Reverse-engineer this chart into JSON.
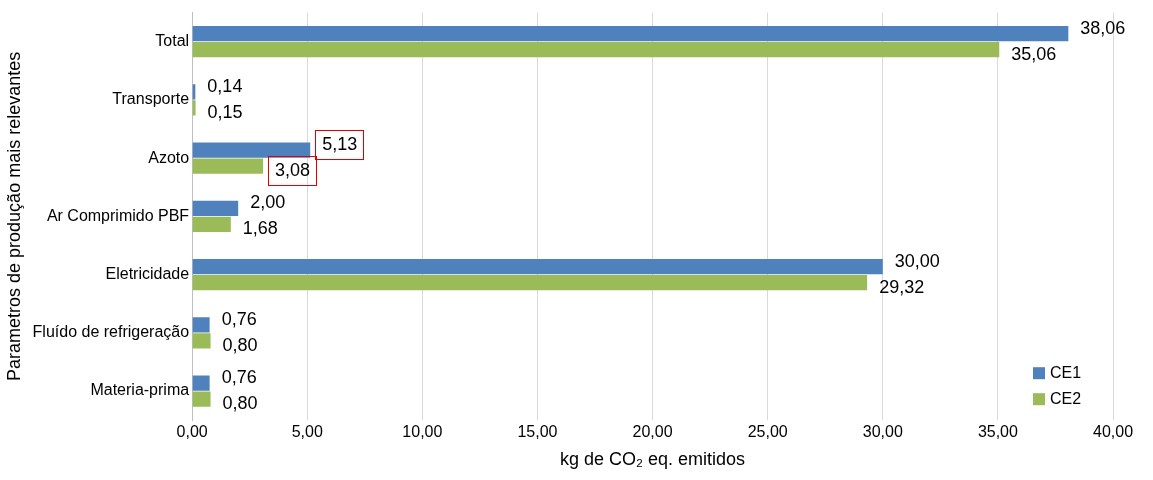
{
  "chart_data": {
    "type": "bar",
    "orientation": "horizontal",
    "xlabel": "kg de CO₂ eq. emitidos",
    "ylabel": "Parametros de produção mais relevantes",
    "categories": [
      "Total",
      "Transporte",
      "Azoto",
      "Ar Comprimido PBF",
      "Eletricidade",
      "Fluído de refrigeração",
      "Materia-prima"
    ],
    "series": [
      {
        "name": "CE1",
        "color": "#4f81bd",
        "values": [
          38.06,
          0.14,
          5.13,
          2.0,
          30.0,
          0.76,
          0.76
        ],
        "value_labels": [
          "38,06",
          "0,14",
          "5,13",
          "2,00",
          "30,00",
          "0,76",
          "0,76"
        ]
      },
      {
        "name": "CE2",
        "color": "#9bbb59",
        "values": [
          35.06,
          0.15,
          3.08,
          1.68,
          29.32,
          0.8,
          0.8
        ],
        "value_labels": [
          "35,06",
          "0,15",
          "3,08",
          "1,68",
          "29,32",
          "0,80",
          "0,80"
        ]
      }
    ],
    "xlim": [
      0,
      40
    ],
    "xticks": [
      {
        "value": 0,
        "label": "0,00"
      },
      {
        "value": 5,
        "label": "5,00"
      },
      {
        "value": 10,
        "label": "10,00"
      },
      {
        "value": 15,
        "label": "15,00"
      },
      {
        "value": 20,
        "label": "20,00"
      },
      {
        "value": 25,
        "label": "25,00"
      },
      {
        "value": 30,
        "label": "30,00"
      },
      {
        "value": 35,
        "label": "35,00"
      },
      {
        "value": 40,
        "label": "40,00"
      }
    ],
    "grid": "x",
    "legend": "bottom right"
  }
}
